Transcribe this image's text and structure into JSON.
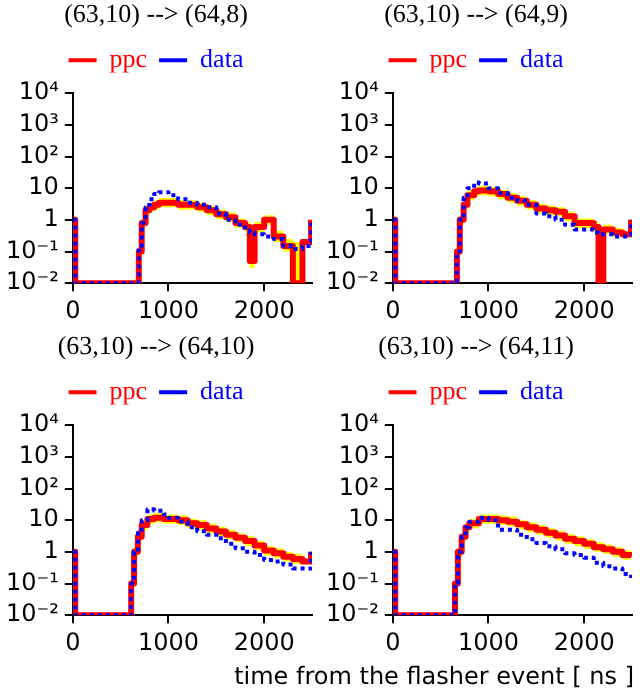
{
  "chart_data": [
    {
      "type": "step",
      "title": "(63,10) --> (64,8)",
      "log": "y",
      "grid": false,
      "legend": "top",
      "xlim": [
        0,
        2500
      ],
      "xticks": [
        0,
        1000,
        2000
      ],
      "ylim": [
        0.01,
        10000
      ],
      "yticks": [
        {
          "value": 10000,
          "label": "10⁴"
        },
        {
          "value": 1000,
          "label": "10³"
        },
        {
          "value": 100,
          "label": "10²"
        },
        {
          "value": 10,
          "label": "10"
        },
        {
          "value": 1,
          "label": "1"
        },
        {
          "value": 0.1,
          "label": "10⁻¹"
        },
        {
          "value": 0.01,
          "label": "10⁻²"
        }
      ],
      "x": [
        0,
        25,
        670,
        690,
        720,
        760,
        800,
        850,
        900,
        1000,
        1100,
        1200,
        1300,
        1400,
        1500,
        1600,
        1700,
        1800,
        1850,
        1900,
        2000,
        2100,
        2200,
        2300,
        2400,
        2490
      ],
      "series": [
        {
          "name": "ppc",
          "color": "#ff0000",
          "line_style": "solid",
          "values": [
            1,
            0.01,
            0.01,
            0.1,
            0.8,
            2,
            2.5,
            3,
            3.5,
            3.5,
            3,
            3,
            2.5,
            2,
            1.5,
            1.2,
            0.8,
            0.6,
            0.05,
            0.6,
            1,
            0.3,
            0.15,
            0.01,
            0.2,
            1
          ],
          "upper": [
            null,
            null,
            null,
            0.15,
            1.1,
            2.8,
            3.5,
            4.2,
            4.9,
            4.9,
            4.2,
            4.2,
            3.5,
            2.8,
            2.1,
            1.7,
            1.1,
            0.85,
            0.6,
            0.85,
            1.4,
            0.45,
            0.25,
            0.2,
            0.3,
            null
          ],
          "lower": [
            null,
            null,
            null,
            0.07,
            0.55,
            1.4,
            1.8,
            2.1,
            2.5,
            2.5,
            2.1,
            2.1,
            1.8,
            1.4,
            1.05,
            0.85,
            0.55,
            0.4,
            0.03,
            0.4,
            0.7,
            0.2,
            0.1,
            0.01,
            0.14,
            null
          ]
        },
        {
          "name": "data",
          "color": "#0000ff",
          "line_style": "dotted",
          "values": [
            1,
            0.01,
            0.01,
            0.15,
            0.8,
            2.5,
            4.5,
            6.5,
            7.5,
            6,
            4.5,
            3.5,
            3,
            2.5,
            1.6,
            1,
            0.7,
            0.45,
            0.4,
            0.35,
            0.3,
            0.25,
            0.15,
            0.12,
            0.15,
            1
          ]
        }
      ]
    },
    {
      "type": "step",
      "title": "(63,10) --> (64,9)",
      "log": "y",
      "grid": false,
      "legend": "top",
      "xlim": [
        0,
        2500
      ],
      "xticks": [
        0,
        1000,
        2000
      ],
      "ylim": [
        0.01,
        10000
      ],
      "yticks": [
        {
          "value": 10000,
          "label": "10⁴"
        },
        {
          "value": 1000,
          "label": "10³"
        },
        {
          "value": 100,
          "label": "10²"
        },
        {
          "value": 10,
          "label": "10"
        },
        {
          "value": 1,
          "label": "1"
        },
        {
          "value": 0.1,
          "label": "10⁻¹"
        },
        {
          "value": 0.01,
          "label": "10⁻²"
        }
      ],
      "x": [
        0,
        25,
        650,
        670,
        700,
        740,
        780,
        850,
        900,
        1000,
        1100,
        1200,
        1300,
        1400,
        1500,
        1600,
        1700,
        1800,
        1900,
        2000,
        2100,
        2150,
        2200,
        2300,
        2400,
        2490
      ],
      "series": [
        {
          "name": "ppc",
          "color": "#ff0000",
          "line_style": "solid",
          "values": [
            1,
            0.01,
            0.01,
            0.1,
            1,
            3,
            6,
            8,
            8.5,
            8,
            6.5,
            5,
            4,
            3,
            2.3,
            2,
            1.8,
            1.3,
            0.8,
            0.8,
            0.6,
            0.01,
            0.5,
            0.4,
            0.35,
            1
          ],
          "upper": [
            null,
            null,
            null,
            0.15,
            1.4,
            4.2,
            8.4,
            11,
            12,
            11,
            9,
            7,
            5.6,
            4.2,
            3.2,
            2.8,
            2.5,
            1.8,
            1.1,
            1.1,
            0.85,
            0.6,
            0.7,
            0.55,
            0.5,
            null
          ],
          "lower": [
            null,
            null,
            null,
            0.07,
            0.7,
            2.1,
            4.2,
            5.6,
            6,
            5.6,
            4.5,
            3.5,
            2.8,
            2.1,
            1.6,
            1.4,
            1.3,
            0.9,
            0.55,
            0.55,
            0.4,
            0.01,
            0.35,
            0.28,
            0.25,
            null
          ]
        },
        {
          "name": "data",
          "color": "#0000ff",
          "line_style": "dotted",
          "values": [
            1,
            0.01,
            0.01,
            0.1,
            1,
            5,
            10,
            15,
            14,
            10,
            7,
            5,
            4,
            3,
            1.6,
            1.3,
            1,
            0.7,
            0.5,
            0.5,
            0.4,
            0.35,
            0.35,
            0.3,
            0.3,
            1
          ]
        }
      ]
    },
    {
      "type": "step",
      "title": "(63,10) --> (64,10)",
      "log": "y",
      "grid": false,
      "legend": "top",
      "xlim": [
        0,
        2500
      ],
      "xticks": [
        0,
        1000,
        2000
      ],
      "ylim": [
        0.01,
        10000
      ],
      "yticks": [
        {
          "value": 10000,
          "label": "10⁴"
        },
        {
          "value": 1000,
          "label": "10³"
        },
        {
          "value": 100,
          "label": "10²"
        },
        {
          "value": 10,
          "label": "10"
        },
        {
          "value": 1,
          "label": "1"
        },
        {
          "value": 0.1,
          "label": "10⁻¹"
        },
        {
          "value": 0.01,
          "label": "10⁻²"
        }
      ],
      "x": [
        0,
        25,
        590,
        610,
        640,
        680,
        720,
        780,
        850,
        950,
        1000,
        1100,
        1200,
        1300,
        1400,
        1500,
        1600,
        1700,
        1800,
        1900,
        2000,
        2100,
        2200,
        2300,
        2400,
        2490
      ],
      "series": [
        {
          "name": "ppc",
          "color": "#ff0000",
          "line_style": "solid",
          "values": [
            1,
            0.01,
            0.01,
            0.1,
            1,
            3,
            7,
            11,
            12,
            11,
            11,
            10,
            8,
            7,
            5.5,
            4.4,
            3.5,
            2.8,
            2.2,
            1.6,
            1.1,
            0.9,
            0.7,
            0.6,
            0.5,
            1
          ],
          "upper": [
            null,
            null,
            null,
            0.15,
            1.4,
            4.2,
            10,
            15,
            17,
            15,
            15,
            14,
            11,
            10,
            7.7,
            6.2,
            4.9,
            3.9,
            3.1,
            2.2,
            1.5,
            1.3,
            1,
            0.85,
            0.7,
            null
          ],
          "lower": [
            null,
            null,
            null,
            0.07,
            0.7,
            2.1,
            4.9,
            7.7,
            8.4,
            7.7,
            7.7,
            7,
            5.6,
            4.9,
            3.9,
            3.1,
            2.5,
            2,
            1.5,
            1.1,
            0.77,
            0.63,
            0.5,
            0.42,
            0.35,
            null
          ]
        },
        {
          "name": "data",
          "color": "#0000ff",
          "line_style": "dotted",
          "values": [
            1,
            0.01,
            0.01,
            0.1,
            1,
            4,
            10,
            22,
            20,
            15,
            12,
            9,
            6,
            4.5,
            3.5,
            2.7,
            1.8,
            1.3,
            1,
            0.8,
            0.55,
            0.5,
            0.4,
            0.3,
            0.3,
            1
          ]
        }
      ]
    },
    {
      "type": "step",
      "title": "(63,10) --> (64,11)",
      "xlabel": "time from the flasher event [ ns ]",
      "log": "y",
      "grid": false,
      "legend": "top",
      "xlim": [
        0,
        2500
      ],
      "xticks": [
        0,
        1000,
        2000
      ],
      "ylim": [
        0.01,
        10000
      ],
      "yticks": [
        {
          "value": 10000,
          "label": "10⁴"
        },
        {
          "value": 1000,
          "label": "10³"
        },
        {
          "value": 100,
          "label": "10²"
        },
        {
          "value": 10,
          "label": "10"
        },
        {
          "value": 1,
          "label": "1"
        },
        {
          "value": 0.1,
          "label": "10⁻¹"
        },
        {
          "value": 0.01,
          "label": "10⁻²"
        }
      ],
      "x": [
        0,
        25,
        630,
        650,
        680,
        720,
        760,
        800,
        900,
        1000,
        1100,
        1200,
        1300,
        1400,
        1500,
        1600,
        1700,
        1800,
        1900,
        2000,
        2100,
        2200,
        2300,
        2400,
        2490
      ],
      "series": [
        {
          "name": "ppc",
          "color": "#ff0000",
          "line_style": "solid",
          "values": [
            1,
            0.01,
            0.01,
            0.1,
            1,
            3,
            6,
            8,
            11,
            11,
            10,
            9,
            7.5,
            6,
            5,
            4,
            3.3,
            2.6,
            2.2,
            1.8,
            1.4,
            1.2,
            1,
            0.8,
            0.7
          ],
          "upper": [
            null,
            null,
            null,
            0.15,
            1.4,
            4.2,
            8.4,
            11,
            15,
            15,
            14,
            13,
            10,
            8.4,
            7,
            5.6,
            4.6,
            3.6,
            3.1,
            2.5,
            2,
            1.7,
            1.4,
            1.1,
            1
          ],
          "lower": [
            null,
            null,
            null,
            0.07,
            0.7,
            2.1,
            4.2,
            5.6,
            7.7,
            7.7,
            7,
            6.3,
            5.2,
            4.2,
            3.5,
            2.8,
            2.3,
            1.8,
            1.5,
            1.25,
            1,
            0.85,
            0.7,
            0.56,
            0.5
          ]
        },
        {
          "name": "data",
          "color": "#0000ff",
          "line_style": "dotted",
          "values": [
            1,
            0.01,
            0.01,
            0.1,
            1,
            3,
            6,
            9,
            12,
            10,
            5,
            5,
            3.5,
            2.5,
            1.9,
            1.5,
            1.2,
            0.9,
            0.8,
            0.65,
            0.45,
            0.35,
            0.3,
            0.2,
            0.15
          ]
        }
      ]
    }
  ]
}
